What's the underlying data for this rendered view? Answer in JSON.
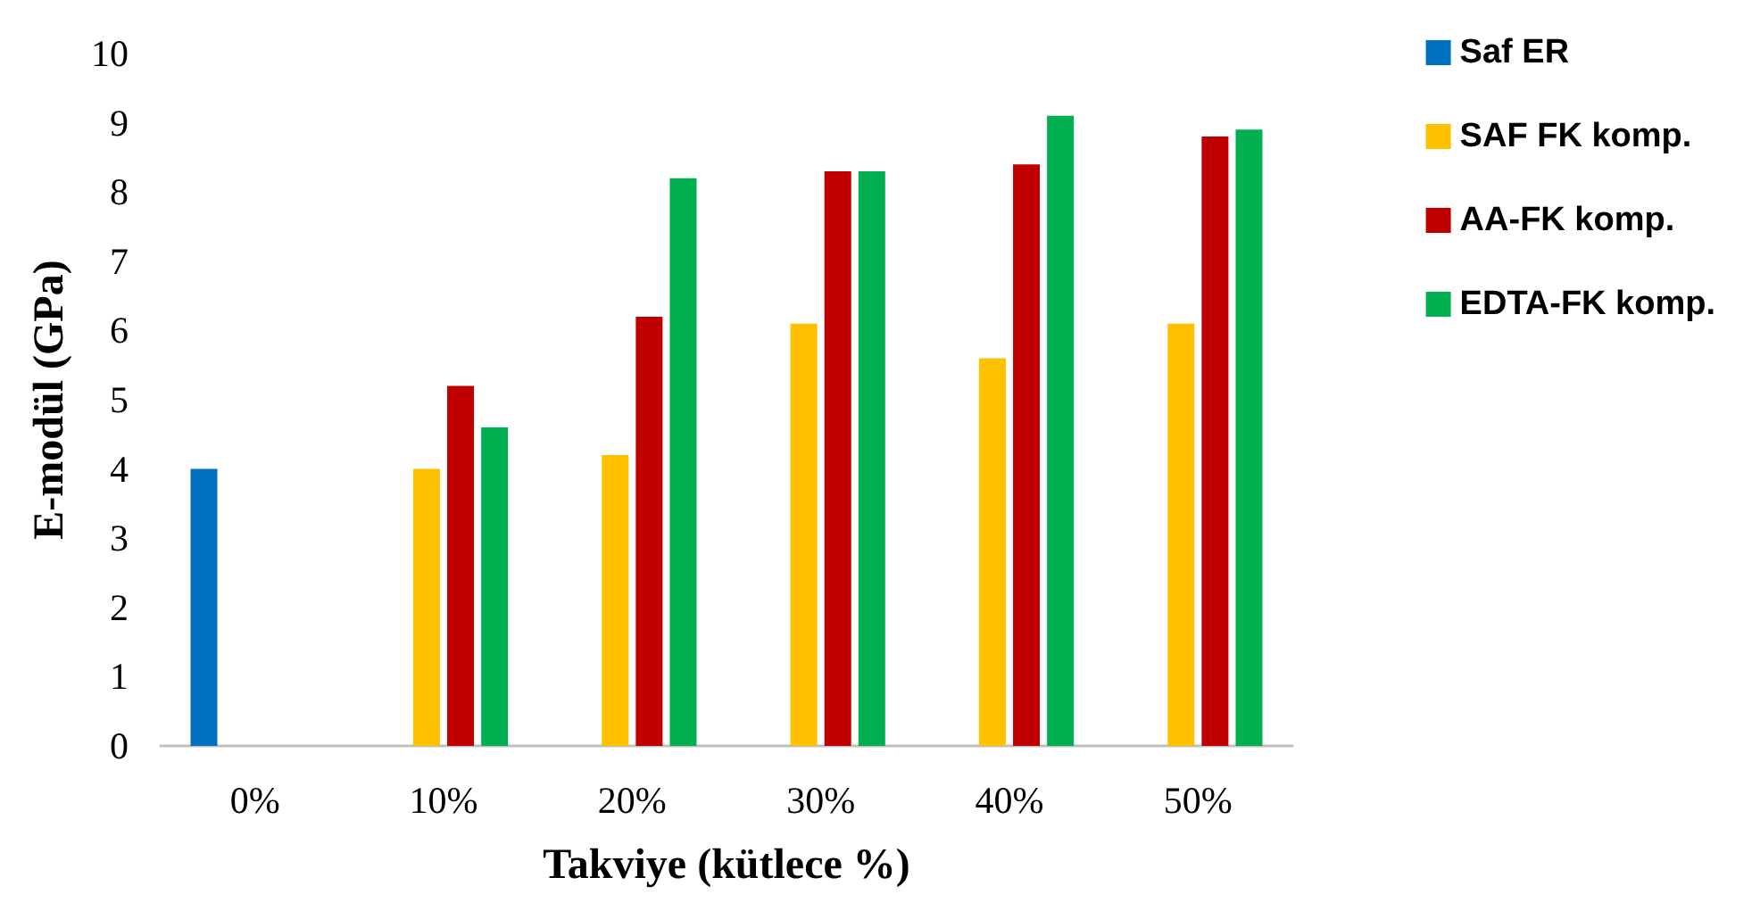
{
  "chart_data": {
    "type": "bar",
    "xlabel": "Takviye (kütlece %)",
    "ylabel": "E-modül (GPa)",
    "categories": [
      "0%",
      "10%",
      "20%",
      "30%",
      "40%",
      "50%"
    ],
    "series": [
      {
        "name": "Saf ER",
        "color": "#0070c0",
        "values": [
          4.0,
          null,
          null,
          null,
          null,
          null
        ]
      },
      {
        "name": "SAF FK komp.",
        "color": "#ffc000",
        "values": [
          null,
          4.0,
          4.2,
          6.1,
          5.6,
          6.1
        ]
      },
      {
        "name": "AA-FK komp.",
        "color": "#c00000",
        "values": [
          null,
          5.2,
          6.2,
          8.3,
          8.4,
          8.8
        ]
      },
      {
        "name": "EDTA-FK komp.",
        "color": "#00b050",
        "values": [
          null,
          4.6,
          8.2,
          8.3,
          9.1,
          8.9
        ]
      }
    ],
    "ylim": [
      0,
      10
    ],
    "yticks": [
      0,
      1,
      2,
      3,
      4,
      5,
      6,
      7,
      8,
      9,
      10
    ],
    "grid": false,
    "legend": "right"
  }
}
